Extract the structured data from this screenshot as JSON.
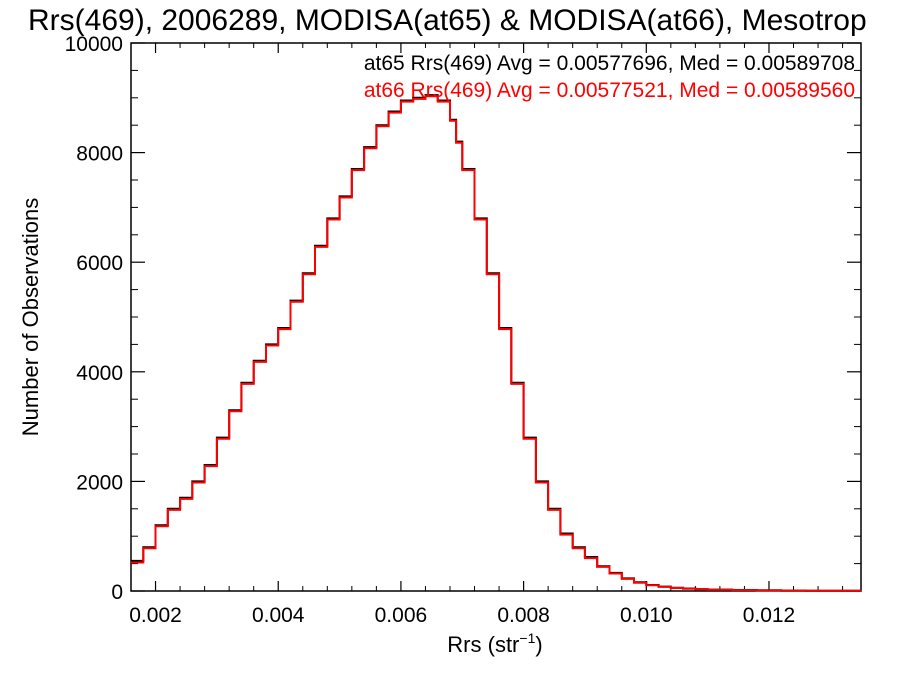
{
  "chart_data": {
    "type": "line",
    "step": true,
    "title": "Rrs(469), 2006289, MODISA(at65) & MODISA(at66), Mesotrop",
    "xlabel": "Rrs (str",
    "xlabel_sup": "−1",
    "xlabel_close": ")",
    "ylabel": "Number of Observations",
    "xlim": [
      0.0016,
      0.0135
    ],
    "ylim": [
      0,
      10000
    ],
    "xticks": [
      0.002,
      0.004,
      0.006,
      0.008,
      0.01,
      0.012
    ],
    "xtick_labels": [
      "0.002",
      "0.004",
      "0.006",
      "0.008",
      "0.010",
      "0.012"
    ],
    "yticks": [
      0,
      2000,
      4000,
      6000,
      8000,
      10000
    ],
    "ytick_labels": [
      "0",
      "2000",
      "4000",
      "6000",
      "8000",
      "10000"
    ],
    "legend_placement": "top-right",
    "annotations": [
      "at65 Rrs(469) Avg = 0.00577696, Med = 0.00589708",
      "at66 Rrs(469) Avg = 0.00577521, Med = 0.00589560"
    ],
    "x": [
      0.0016,
      0.0018,
      0.002,
      0.0022,
      0.0024,
      0.0026,
      0.0028,
      0.003,
      0.0032,
      0.0034,
      0.0036,
      0.0038,
      0.004,
      0.0042,
      0.0044,
      0.0046,
      0.0048,
      0.005,
      0.0052,
      0.0054,
      0.0056,
      0.0058,
      0.006,
      0.0062,
      0.0064,
      0.0066,
      0.0068,
      0.0069,
      0.007,
      0.0072,
      0.0074,
      0.0076,
      0.0078,
      0.008,
      0.0082,
      0.0084,
      0.0086,
      0.0088,
      0.009,
      0.0092,
      0.0094,
      0.0096,
      0.0098,
      0.01,
      0.0102,
      0.0104,
      0.0106,
      0.0108,
      0.011,
      0.0114,
      0.0118,
      0.0122,
      0.0126,
      0.013,
      0.0135
    ],
    "series": [
      {
        "name": "at65",
        "color": "#000000",
        "values": [
          550,
          800,
          1200,
          1500,
          1700,
          2000,
          2300,
          2800,
          3300,
          3800,
          4200,
          4500,
          4800,
          5300,
          5800,
          6300,
          6800,
          7200,
          7700,
          8100,
          8500,
          8750,
          8950,
          9000,
          9050,
          8950,
          8600,
          8200,
          7700,
          6800,
          5800,
          4800,
          3800,
          2800,
          2000,
          1500,
          1050,
          800,
          620,
          450,
          330,
          230,
          160,
          110,
          80,
          60,
          45,
          35,
          25,
          18,
          12,
          8,
          6,
          4,
          3
        ]
      },
      {
        "name": "at66",
        "color": "#ff0000",
        "values": [
          520,
          780,
          1180,
          1480,
          1680,
          1980,
          2280,
          2780,
          3280,
          3780,
          4180,
          4480,
          4780,
          5280,
          5780,
          6280,
          6780,
          7180,
          7680,
          8080,
          8480,
          8730,
          8930,
          8980,
          9030,
          8930,
          8580,
          8180,
          7680,
          6780,
          5780,
          4780,
          3780,
          2780,
          1980,
          1480,
          1030,
          780,
          600,
          440,
          320,
          220,
          150,
          105,
          75,
          55,
          42,
          32,
          22,
          16,
          10,
          7,
          5,
          3,
          2
        ]
      }
    ]
  }
}
